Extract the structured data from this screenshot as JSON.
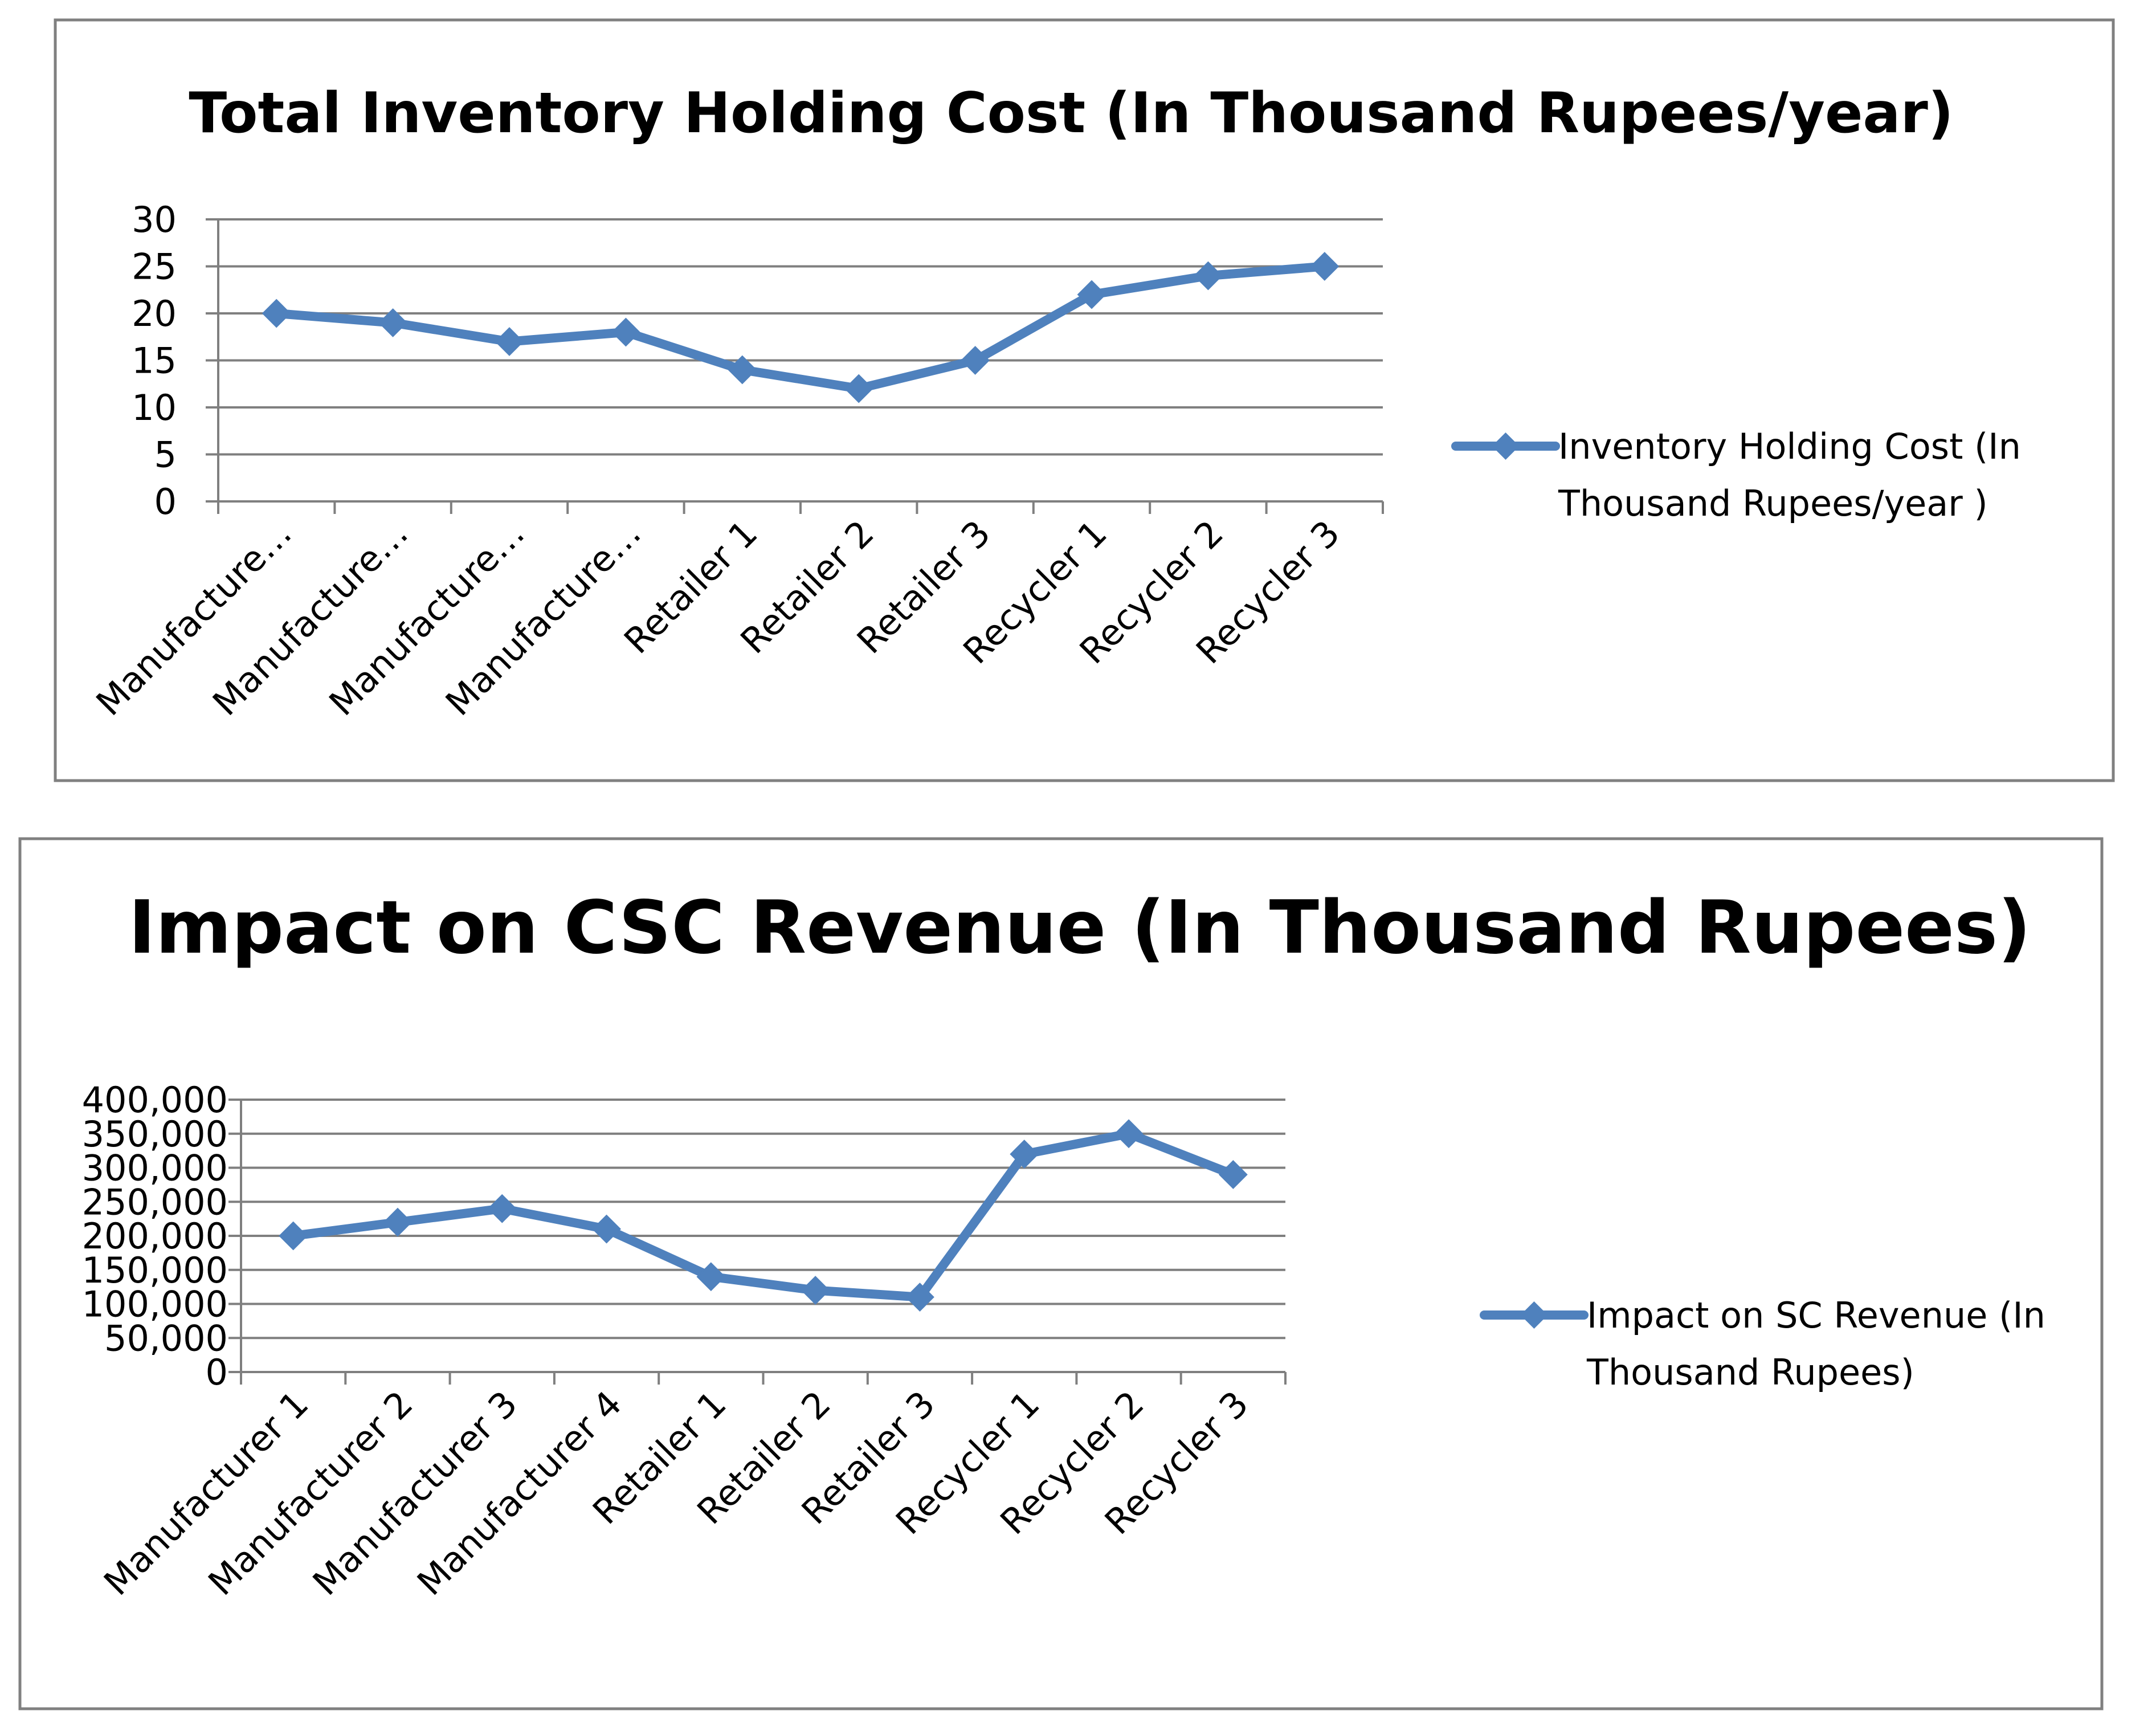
{
  "chart_data": [
    {
      "type": "line",
      "title": "Total Inventory Holding Cost (In Thousand Rupees/year)",
      "categories": [
        "Manufacture…",
        "Manufacture…",
        "Manufacture…",
        "Manufacture…",
        "Retailer 1",
        "Retailer 2",
        "Retailer 3",
        "Recycler 1",
        "Recycler 2",
        "Recycler 3"
      ],
      "series": [
        {
          "name": "Inventory Holding Cost (In Thousand Rupees/year )",
          "legend_lines": [
            "Inventory Holding Cost (In",
            "Thousand Rupees/year )"
          ],
          "values": [
            20,
            19,
            17,
            18,
            14,
            12,
            15,
            22,
            24,
            25
          ]
        }
      ],
      "ylim": [
        0,
        30
      ],
      "yticks": [
        0,
        5,
        10,
        15,
        20,
        25,
        30
      ],
      "ytick_labels": [
        "0",
        "5",
        "10",
        "15",
        "20",
        "25",
        "30"
      ],
      "xlabel": "",
      "ylabel": "",
      "grid": true,
      "legend": "right",
      "color": "#4f81bd"
    },
    {
      "type": "line",
      "title": "Impact on CSC Revenue  (In  Thousand Rupees)",
      "categories": [
        "Manufacturer 1",
        "Manufacturer 2",
        "Manufacturer 3",
        "Manufacturer 4",
        "Retailer 1",
        "Retailer 2",
        "Retailer 3",
        "Recycler 1",
        "Recycler 2",
        "Recycler 3"
      ],
      "series": [
        {
          "name": "Impact on SC Revenue  (In Thousand Rupees)",
          "legend_lines": [
            "Impact on SC Revenue  (In",
            "Thousand Rupees)"
          ],
          "values": [
            200000,
            220000,
            240000,
            210000,
            140000,
            120000,
            110000,
            320000,
            350000,
            290000
          ]
        }
      ],
      "ylim": [
        0,
        400000
      ],
      "yticks": [
        0,
        50000,
        100000,
        150000,
        200000,
        250000,
        300000,
        350000,
        400000
      ],
      "ytick_labels": [
        "0",
        "50,000",
        "100,000",
        "150,000",
        "200,000",
        "250,000",
        "300,000",
        "350,000",
        "400,000"
      ],
      "xlabel": "",
      "ylabel": "",
      "grid": true,
      "legend": "right",
      "color": "#4f81bd"
    }
  ]
}
